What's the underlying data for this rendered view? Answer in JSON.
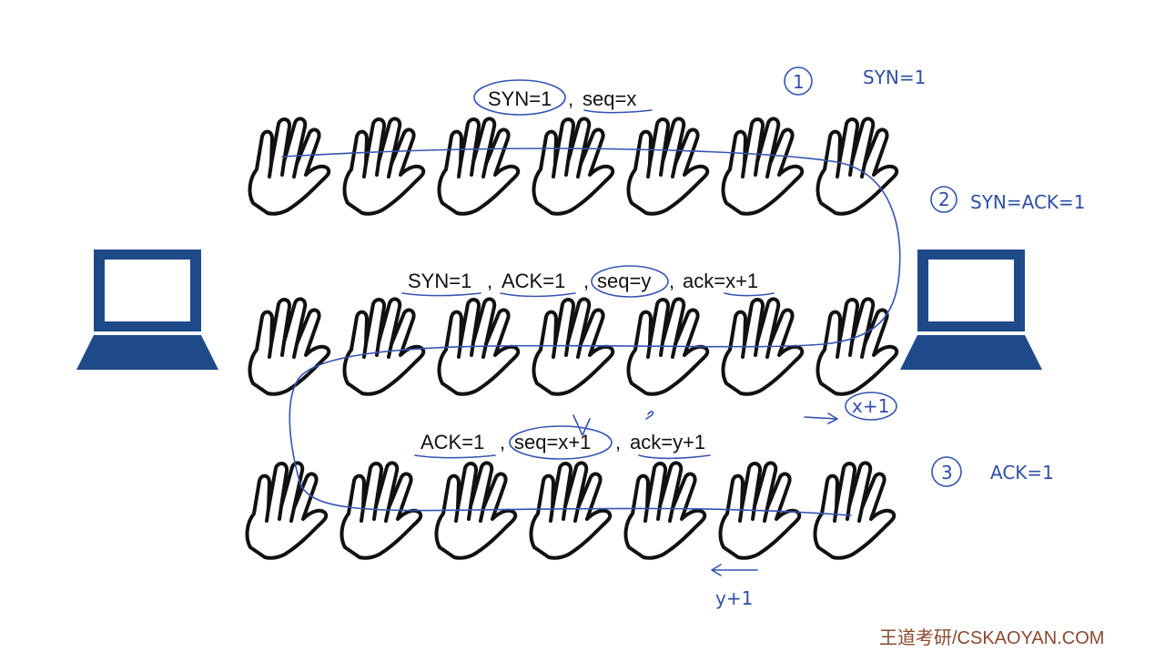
{
  "colors": {
    "ink": "#3553b3",
    "laptop": "#1f4a8a",
    "hand": "#111111",
    "watermark": "#8a4a2e"
  },
  "messages": {
    "msg1": {
      "syn": "SYN=1",
      "sep": ",",
      "seq": "seq=x"
    },
    "msg2": {
      "syn": "SYN=1",
      "sep1": ",",
      "ackflag": "ACK=1",
      "sep2": ",",
      "seq": "seq=y",
      "sep3": ",",
      "ack": "ack=x+1"
    },
    "msg3": {
      "ackflag": "ACK=1",
      "sep1": ",",
      "seq": "seq=x+1",
      "sep2": ",",
      "ack": "ack=y+1"
    }
  },
  "annotations": {
    "step1_number": "1",
    "step1_text": "SYN=1",
    "step2_number": "2",
    "step2_text": "SYN=ACK=1",
    "step3_number": "3",
    "step3_text": "ACK=1",
    "note_x_plus_1": "x+1",
    "note_y_plus_1": "y+1"
  },
  "icons": {
    "left_computer": "laptop-icon",
    "right_computer": "laptop-icon",
    "hand": "waving-hand-icon"
  },
  "watermark": "王道考研/CSKAOYAN.COM"
}
